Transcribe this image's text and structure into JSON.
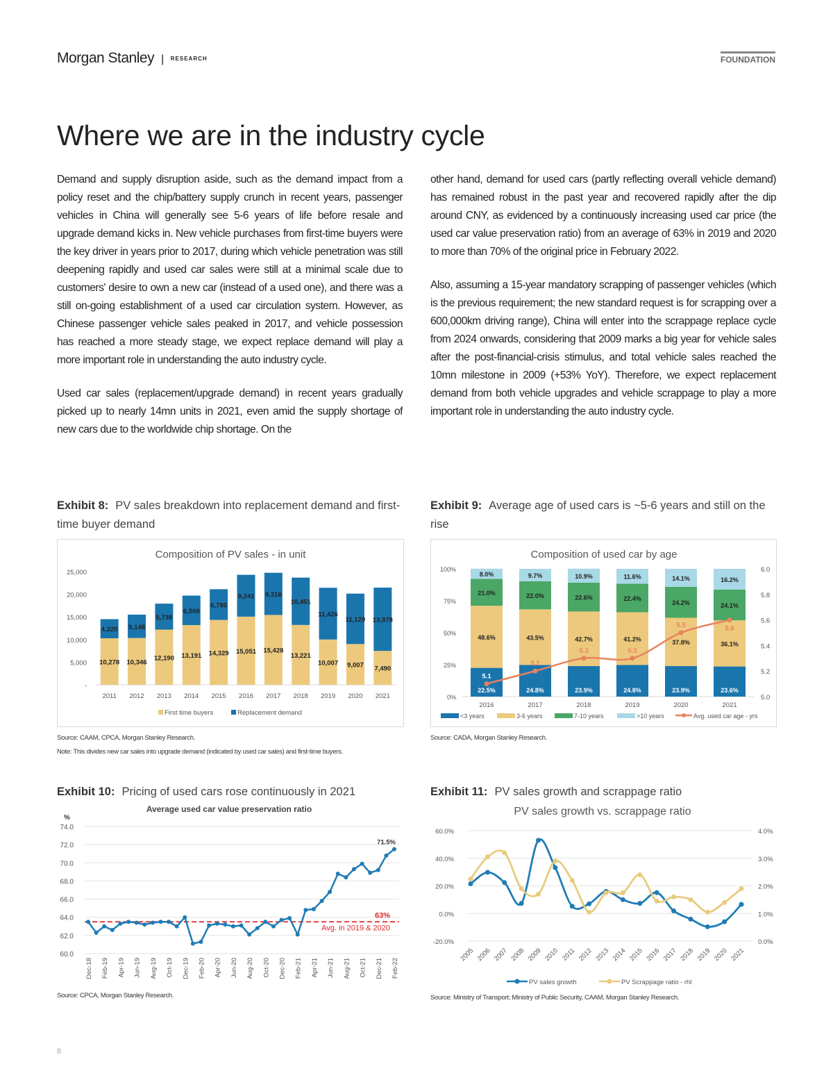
{
  "header": {
    "brand": "Morgan Stanley",
    "separator": "|",
    "section": "RESEARCH",
    "tag": "FOUNDATION"
  },
  "title": "Where we are in the industry cycle",
  "left_paragraphs": [
    "Demand and supply disruption aside, such as the demand impact from a policy reset and the chip/battery supply crunch in recent years, passenger vehicles in China will generally see 5-6 years of life before resale and upgrade demand kicks in. New vehicle purchases from first-time buyers were the key driver in years prior to 2017, during which vehicle penetration was still deepening rapidly and used car sales were still at a minimal scale due to customers' desire to own a new car (instead of a used one), and there was a still on-going establishment of a used car circulation system. However, as Chinese passenger vehicle sales peaked in 2017, and vehicle possession has reached a more steady stage, we expect replace demand will play a more important role in understanding the auto industry cycle.",
    "Used car sales (replacement/upgrade demand) in recent years gradually picked up to nearly 14mn units in 2021, even amid the supply shortage of new cars due to the worldwide chip shortage. On the"
  ],
  "right_paragraphs": [
    "other hand, demand for used cars (partly reflecting overall vehicle demand) has remained robust in the past year and recovered rapidly after the dip around CNY, as evidenced by a continuously increasing used car price (the used car value preservation ratio) from an average of 63% in 2019 and 2020 to more than 70% of the original price in February 2022.",
    "Also, assuming a 15-year mandatory scrapping of passenger vehicles (which is the previous requirement; the new standard request is for scrapping over a 600,000km driving range), China will enter into the scrappage replace cycle from 2024 onwards, considering that 2009 marks a big year for vehicle sales after the post-financial-crisis stimulus, and total vehicle sales reached the 10mn milestone in 2009 (+53% YoY). Therefore, we expect replacement demand from both vehicle upgrades and vehicle scrappage to play a more important role in understanding the auto industry cycle."
  ],
  "exhibits": [
    {
      "label": "Exhibit 8:",
      "caption": "PV sales breakdown into replacement demand and first-time buyer demand",
      "source": "Source: CAAM, CPCA, Morgan Stanley Research.",
      "note": "Note: This divides new car sales into upgrade demand (indicated by used car sales) and first-time buyers."
    },
    {
      "label": "Exhibit 9:",
      "caption": "Average age of used cars is ~5-6 years and still on the rise",
      "source": "Source: CADA, Morgan Stanley Research."
    },
    {
      "label": "Exhibit 10:",
      "caption": "Pricing of used cars rose continuously in 2021",
      "source": "Source: CPCA, Morgan Stanley Research."
    },
    {
      "label": "Exhibit 11:",
      "caption": "PV sales growth and scrappage ratio",
      "source": "Source: Ministry of Transport; Ministry of Public Security, CAAM, Morgan Stanley Research."
    }
  ],
  "page_number": "8",
  "colors": {
    "blue": "#1a75ad",
    "tan": "#ecc97d",
    "green": "#4aa765",
    "light_blue": "#a9d8e6",
    "orange": "#e8825e",
    "red": "#e0262b",
    "line_blue": "#1f7cb5",
    "line_tan": "#e8cc7e"
  },
  "chart_data": [
    {
      "type": "bar",
      "stacked": true,
      "title": "Composition of PV sales - in unit",
      "categories": [
        "2011",
        "2012",
        "2013",
        "2014",
        "2015",
        "2016",
        "2017",
        "2018",
        "2019",
        "2020",
        "2021"
      ],
      "series": [
        {
          "name": "First time buyers",
          "values": [
            10278,
            10346,
            12190,
            13191,
            14329,
            15051,
            15428,
            13221,
            10007,
            9007,
            7490
          ],
          "labels": [
            "10,278",
            "10,346",
            "12,190",
            "13,191",
            "14,329",
            "15,051",
            "15,428",
            "13,221",
            "10,007",
            "9,007",
            "7,490"
          ]
        },
        {
          "name": "Replacement demand",
          "values": [
            4220,
            5148,
            5738,
            6509,
            6780,
            9241,
            9316,
            10451,
            11426,
            11129,
            13978
          ],
          "labels": [
            "4,220",
            "5,148",
            "5,738",
            "6,509",
            "6,780",
            "9,241",
            "9,316",
            "10,451",
            "11,426",
            "11,129",
            "13,978"
          ]
        }
      ],
      "ylim": [
        0,
        25000
      ],
      "yticks": [
        "-",
        "5,000",
        "10,000",
        "15,000",
        "20,000",
        "25,000"
      ],
      "legend": "bottom"
    },
    {
      "type": "bar",
      "stacked": true,
      "title": "Composition of used car by age",
      "categories": [
        "2016",
        "2017",
        "2018",
        "2019",
        "2020",
        "2021"
      ],
      "series": [
        {
          "name": "<3 years",
          "values": [
            22.5,
            24.8,
            23.9,
            24.8,
            23.9,
            23.6
          ]
        },
        {
          "name": "3-6 years",
          "values": [
            48.6,
            43.5,
            42.7,
            41.2,
            37.8,
            36.1
          ]
        },
        {
          "name": "7-10 years",
          "values": [
            21.0,
            22.0,
            22.6,
            22.4,
            24.2,
            24.1
          ]
        },
        {
          "name": ">10 years",
          "values": [
            8.0,
            9.7,
            10.9,
            11.6,
            14.1,
            16.2
          ]
        }
      ],
      "line": {
        "name": "Avg. used car age - yrs",
        "values": [
          5.1,
          5.2,
          5.3,
          5.3,
          5.5,
          5.6
        ],
        "axis": "right"
      },
      "ylim": [
        0,
        100
      ],
      "yticks": [
        "0%",
        "25%",
        "50%",
        "75%",
        "100%"
      ],
      "y2lim": [
        5.0,
        6.0
      ],
      "y2ticks": [
        "5.0",
        "5.2",
        "5.4",
        "5.6",
        "5.8",
        "6.0"
      ],
      "legend": "bottom"
    },
    {
      "type": "line",
      "title": "Average used car value preservation ratio",
      "ylabel": "%",
      "ylim": [
        60,
        74
      ],
      "yticks": [
        "60.0",
        "62.0",
        "64.0",
        "66.0",
        "68.0",
        "70.0",
        "72.0",
        "74.0"
      ],
      "x": [
        "Dec-18",
        "Jan-19",
        "Feb-19",
        "Mar-19",
        "Apr-19",
        "May-19",
        "Jun-19",
        "Jul-19",
        "Aug-19",
        "Sep-19",
        "Oct-19",
        "Nov-19",
        "Dec-19",
        "Jan-20",
        "Feb-20",
        "Mar-20",
        "Apr-20",
        "May-20",
        "Jun-20",
        "Jul-20",
        "Aug-20",
        "Sep-20",
        "Oct-20",
        "Nov-20",
        "Dec-20",
        "Jan-21",
        "Feb-21",
        "Mar-21",
        "Apr-21",
        "May-21",
        "Jun-21",
        "Jul-21",
        "Aug-21",
        "Sep-21",
        "Oct-21",
        "Nov-21",
        "Dec-21",
        "Jan-22",
        "Feb-22"
      ],
      "xticks": [
        "Dec-18",
        "Feb-19",
        "Apr-19",
        "Jun-19",
        "Aug-19",
        "Oct-19",
        "Dec-19",
        "Feb-20",
        "Apr-20",
        "Jun-20",
        "Aug-20",
        "Oct-20",
        "Dec-20",
        "Feb-21",
        "Apr-21",
        "Jun-21",
        "Aug-21",
        "Oct-21",
        "Dec-21",
        "Feb-22"
      ],
      "values": [
        63.5,
        62.3,
        63.0,
        62.6,
        63.3,
        63.5,
        63.4,
        63.2,
        63.4,
        63.5,
        63.5,
        63.0,
        64.0,
        61.1,
        61.3,
        63.1,
        63.3,
        63.2,
        63.0,
        63.1,
        62.1,
        62.8,
        63.5,
        63.0,
        63.7,
        63.9,
        62.1,
        64.8,
        64.9,
        65.8,
        66.8,
        68.8,
        68.4,
        69.3,
        69.9,
        68.9,
        69.2,
        70.8,
        71.5
      ],
      "end_label": "71.5%",
      "reference": {
        "value": 63.5,
        "label": "63%",
        "sublabel": "Avg. in 2019 & 2020"
      }
    },
    {
      "type": "line",
      "title": "PV sales growth vs. scrappage ratio",
      "x": [
        "2005",
        "2006",
        "2007",
        "2008",
        "2009",
        "2010",
        "2011",
        "2012",
        "2013",
        "2014",
        "2015",
        "2016",
        "2017",
        "2018",
        "2019",
        "2020",
        "2021"
      ],
      "series": [
        {
          "name": "PV sales growth",
          "axis": "left",
          "values": [
            21.5,
            29.8,
            22.4,
            7.3,
            53.0,
            33.2,
            5.2,
            7.0,
            16.0,
            10.0,
            7.3,
            15.1,
            1.9,
            -4.1,
            -9.6,
            -6.0,
            6.6
          ]
        },
        {
          "name": "PV Scrappage ratio - rhl",
          "axis": "right",
          "values": [
            2.25,
            3.05,
            3.2,
            1.9,
            1.7,
            2.9,
            2.2,
            1.05,
            1.75,
            1.75,
            2.4,
            1.45,
            1.6,
            1.5,
            1.05,
            1.4,
            1.9
          ]
        }
      ],
      "ylim": [
        -20,
        60
      ],
      "yticks": [
        "-20.0%",
        "0.0%",
        "20.0%",
        "40.0%",
        "60.0%"
      ],
      "y2lim": [
        0,
        4
      ],
      "y2ticks": [
        "0.0%",
        "1.0%",
        "2.0%",
        "3.0%",
        "4.0%"
      ],
      "legend": "bottom"
    }
  ]
}
